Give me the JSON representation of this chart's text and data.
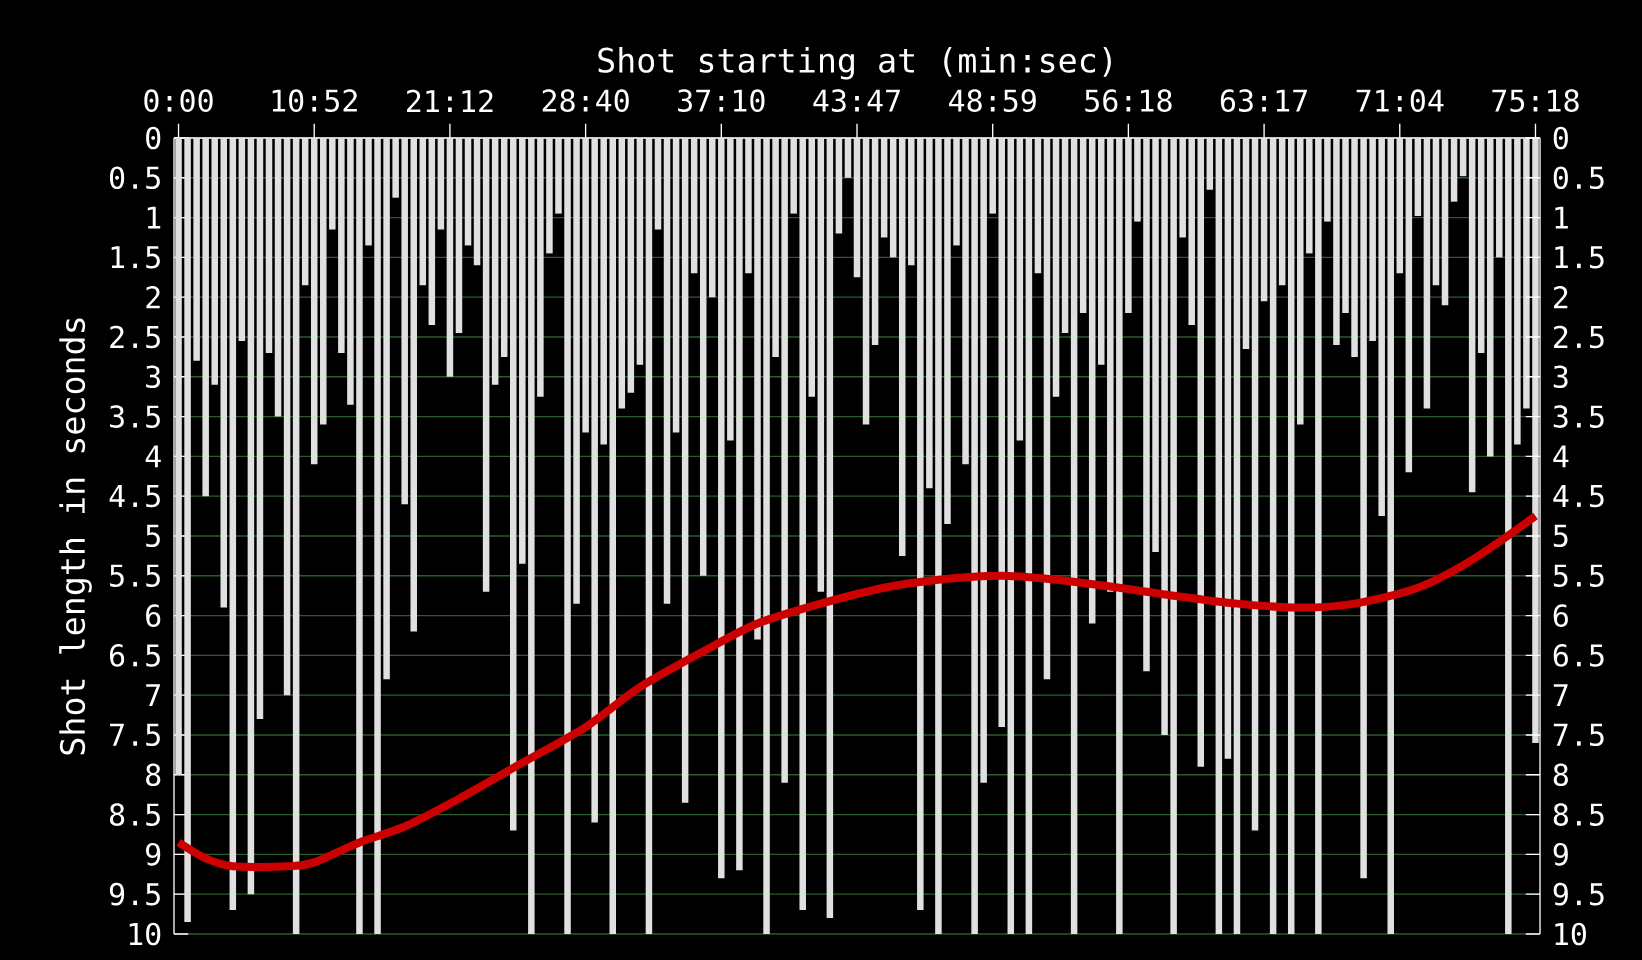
{
  "chart_data": {
    "type": "bar",
    "xlabel": "Shot starting at (min:sec)",
    "ylabel": "Shot length in seconds",
    "categories": [
      "0:00",
      null,
      null,
      null,
      null,
      null,
      null,
      null,
      null,
      null,
      null,
      null,
      null,
      null,
      null,
      "10:52",
      null,
      null,
      null,
      null,
      null,
      null,
      null,
      null,
      null,
      null,
      null,
      null,
      null,
      null,
      "21:12",
      null,
      null,
      null,
      null,
      null,
      null,
      null,
      null,
      null,
      null,
      null,
      null,
      null,
      null,
      "28:40",
      null,
      null,
      null,
      null,
      null,
      null,
      null,
      null,
      null,
      null,
      null,
      null,
      null,
      null,
      "37:10",
      null,
      null,
      null,
      null,
      null,
      null,
      null,
      null,
      null,
      null,
      null,
      null,
      null,
      null,
      "43:47",
      null,
      null,
      null,
      null,
      null,
      null,
      null,
      null,
      null,
      null,
      null,
      null,
      null,
      null,
      "48:59",
      null,
      null,
      null,
      null,
      null,
      null,
      null,
      null,
      null,
      null,
      null,
      null,
      null,
      null,
      "56:18",
      null,
      null,
      null,
      null,
      null,
      null,
      null,
      null,
      null,
      null,
      null,
      null,
      null,
      null,
      "63:17",
      null,
      null,
      null,
      null,
      null,
      null,
      null,
      null,
      null,
      null,
      null,
      null,
      null,
      null,
      "71:04",
      null,
      null,
      null,
      null,
      null,
      null,
      null,
      null,
      null,
      null,
      null,
      null,
      null,
      null,
      "75:18"
    ],
    "ylim": [
      10,
      0
    ],
    "yticks": [
      0,
      0.5,
      1,
      1.5,
      2,
      2.5,
      3,
      3.5,
      4,
      4.5,
      5,
      5.5,
      6,
      6.5,
      7,
      7.5,
      8,
      8.5,
      9,
      9.5,
      10
    ],
    "y2lim": [
      10,
      0
    ],
    "y2ticks": [
      0,
      0.5,
      1,
      1.5,
      2,
      2.5,
      3,
      3.5,
      4,
      4.5,
      5,
      5.5,
      6,
      6.5,
      7,
      7.5,
      8,
      8.5,
      9,
      9.5,
      10
    ],
    "grid": "y",
    "series": [
      {
        "color": "#e0e0e0",
        "values": [
          8.0,
          9.85,
          2.8,
          4.5,
          3.1,
          5.9,
          9.7,
          2.55,
          9.5,
          7.3,
          2.7,
          3.5,
          7.0,
          10,
          1.85,
          4.1,
          3.6,
          1.15,
          2.7,
          3.35,
          10,
          1.35,
          10,
          6.8,
          0.75,
          4.6,
          6.2,
          1.85,
          2.35,
          1.15,
          3.0,
          2.45,
          1.35,
          1.6,
          5.7,
          3.1,
          2.75,
          8.7,
          5.35,
          10,
          3.25,
          1.45,
          0.95,
          10,
          5.85,
          3.7,
          8.6,
          3.85,
          10,
          3.4,
          3.2,
          2.85,
          10,
          1.15,
          5.85,
          3.7,
          8.35,
          1.7,
          5.5,
          2.0,
          9.3,
          3.8,
          9.2,
          1.7,
          6.3,
          10,
          2.75,
          8.1,
          0.95,
          9.7,
          3.25,
          5.7,
          9.8,
          1.2,
          0.5,
          1.75,
          3.6,
          2.6,
          1.25,
          1.5,
          5.25,
          1.6,
          9.7,
          4.4,
          10,
          4.85,
          1.35,
          4.1,
          10,
          8.1,
          0.95,
          7.4,
          10,
          3.8,
          10,
          1.7,
          6.8,
          3.25,
          2.45,
          10,
          2.2,
          6.1,
          2.85,
          5.7,
          10,
          2.2,
          1.05,
          6.7,
          5.2,
          7.5,
          10,
          1.25,
          2.35,
          7.9,
          0.65,
          10,
          7.8,
          10,
          2.65,
          8.7,
          2.05,
          10,
          1.85,
          10,
          3.6,
          1.45,
          10,
          1.05,
          2.6,
          2.2,
          2.75,
          9.3,
          2.55,
          4.75,
          10,
          1.7,
          4.2,
          0.98,
          3.4,
          1.85,
          2.1,
          0.8,
          0.48,
          4.45,
          2.7,
          4.0,
          1.5,
          10,
          3.85,
          3.4,
          7.6
        ]
      },
      {
        "type": "line",
        "color": "#cc0000",
        "values": [
          8.85,
          null,
          null,
          9.05,
          null,
          null,
          9.15,
          null,
          null,
          null,
          null,
          null,
          9.15,
          null,
          null,
          9.1,
          null,
          null,
          null,
          null,
          8.85,
          null,
          null,
          null,
          null,
          8.65,
          null,
          null,
          null,
          null,
          null,
          8.3,
          null,
          null,
          null,
          null,
          null,
          null,
          7.85,
          null,
          null,
          null,
          null,
          null,
          null,
          7.4,
          null,
          null,
          null,
          null,
          null,
          6.9,
          null,
          null,
          null,
          null,
          null,
          null,
          6.45,
          null,
          null,
          null,
          null,
          null,
          6.1,
          null,
          null,
          null,
          null,
          null,
          null,
          5.85,
          null,
          null,
          null,
          null,
          null,
          null,
          5.65,
          null,
          null,
          null,
          null,
          null,
          5.55,
          null,
          null,
          null,
          null,
          null,
          null,
          5.5,
          null,
          null,
          null,
          null,
          null,
          5.55,
          null,
          null,
          null,
          null,
          null,
          null,
          5.65,
          null,
          null,
          null,
          null,
          null,
          5.75,
          null,
          null,
          null,
          null,
          null,
          null,
          5.85,
          null,
          null,
          null,
          null,
          null,
          null,
          5.9,
          null,
          null,
          null,
          null,
          null,
          5.85,
          null,
          null,
          null,
          null,
          null,
          null,
          5.65,
          null,
          null,
          null,
          null,
          null,
          5.3,
          null,
          null,
          null,
          null,
          null,
          null,
          4.75
        ]
      }
    ]
  }
}
